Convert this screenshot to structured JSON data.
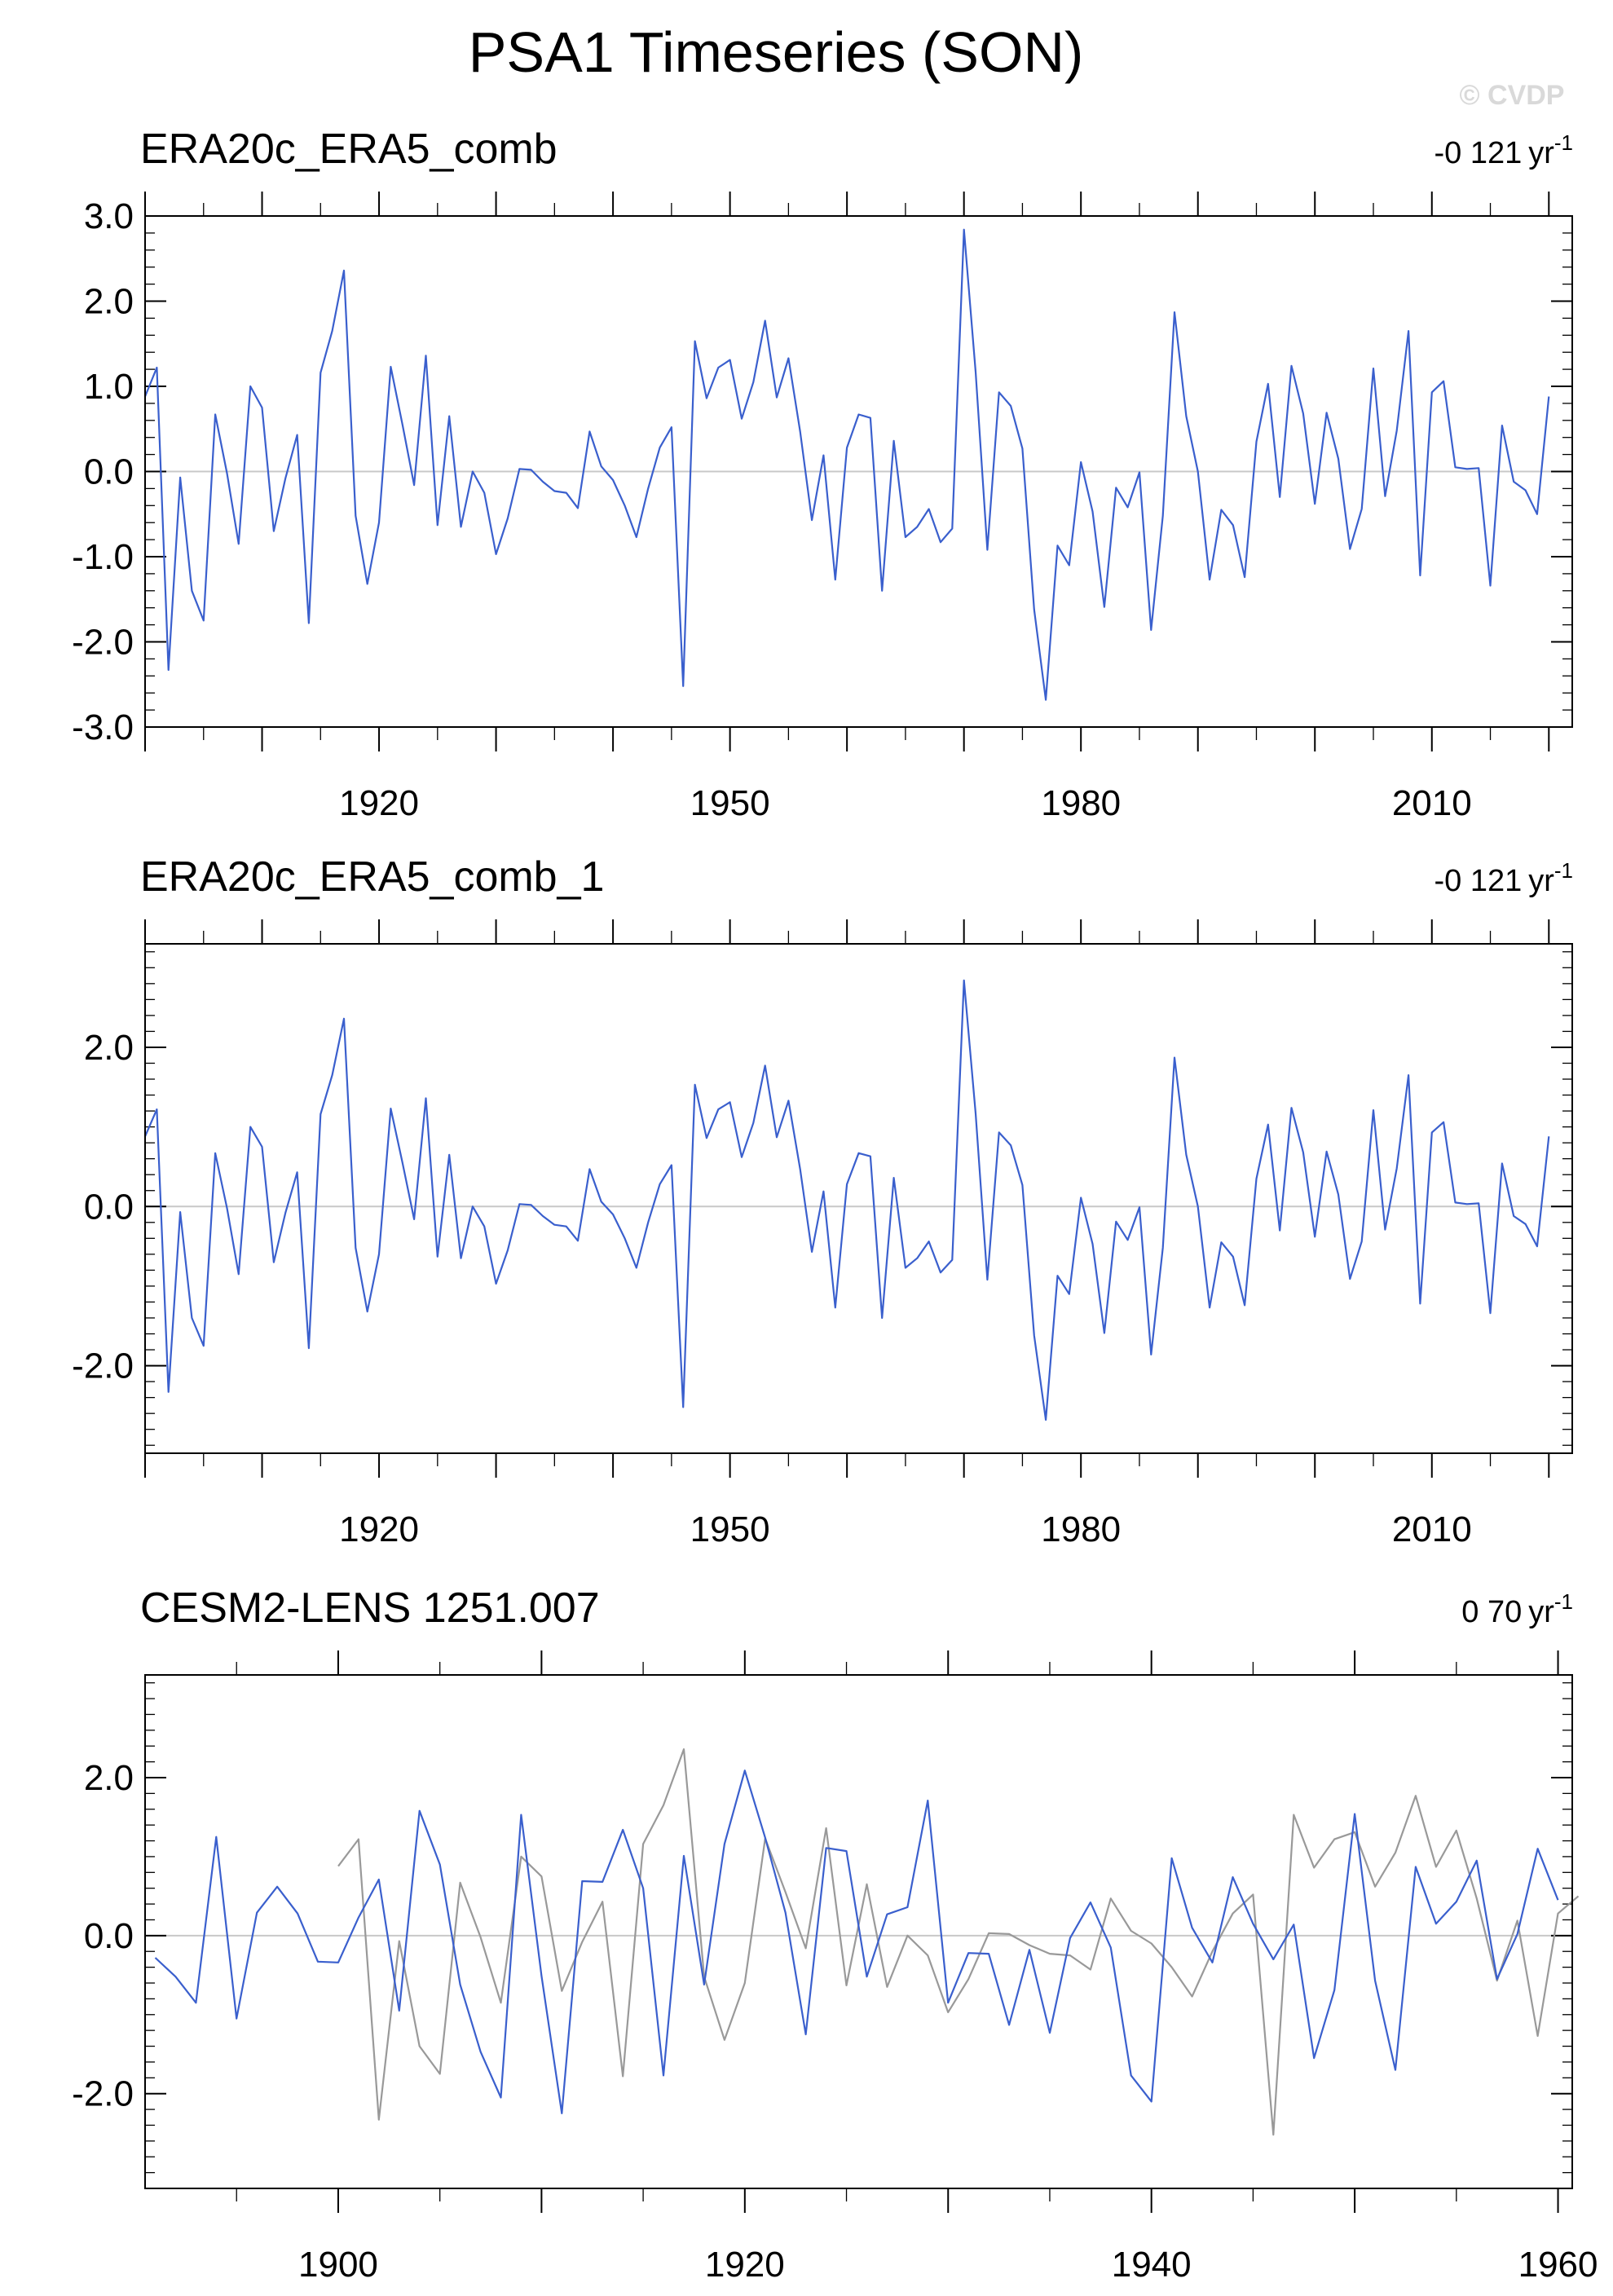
{
  "figure": {
    "title": "PSA1 Timeseries (SON)",
    "copyright": "© CVDP"
  },
  "chart_data": [
    {
      "type": "line",
      "title": "ERA20c_ERA5_comb",
      "trend_value": "-0 121",
      "trend_unit": "yr",
      "trend_exp": "-1",
      "xlim": [
        1900,
        2022
      ],
      "ylim": [
        -3.0,
        3.0
      ],
      "yticks": [
        -3.0,
        -2.0,
        -1.0,
        0.0,
        1.0,
        2.0,
        3.0
      ],
      "ytick_labels": [
        "-3.0",
        "-2.0",
        "-1.0",
        "0.0",
        "1.0",
        "2.0",
        "3.0"
      ],
      "xticks": [
        1920,
        1950,
        1980,
        2010
      ],
      "zero_line": true,
      "series": [
        {
          "color": "#3a5fcd",
          "x_start": 1900,
          "values": [
            0.88,
            1.22,
            -2.33,
            -0.07,
            -1.4,
            -1.75,
            0.67,
            -0.02,
            -0.85,
            1.0,
            0.75,
            -0.7,
            -0.08,
            0.43,
            -1.78,
            1.16,
            1.65,
            2.36,
            -0.52,
            -1.32,
            -0.6,
            1.23,
            0.55,
            -0.16,
            1.36,
            -0.63,
            0.65,
            -0.65,
            0.0,
            -0.25,
            -0.97,
            -0.55,
            0.03,
            0.02,
            -0.12,
            -0.23,
            -0.25,
            -0.43,
            0.47,
            0.06,
            -0.1,
            -0.4,
            -0.77,
            -0.2,
            0.28,
            0.52,
            -2.52,
            1.53,
            0.86,
            1.22,
            1.31,
            0.62,
            1.05,
            1.77,
            0.87,
            1.33,
            0.47,
            -0.57,
            0.19,
            -1.27,
            0.28,
            0.67,
            0.63,
            -1.4,
            0.36,
            -0.77,
            -0.65,
            -0.44,
            -0.83,
            -0.67,
            2.84,
            1.17,
            -0.92,
            0.93,
            0.77,
            0.27,
            -1.62,
            -2.68,
            -0.87,
            -1.1,
            0.11,
            -0.47,
            -1.59,
            -0.19,
            -0.42,
            -0.01,
            -1.86,
            -0.52,
            1.87,
            0.65,
            0.0,
            -1.27,
            -0.45,
            -0.63,
            -1.24,
            0.35,
            1.03,
            -0.3,
            1.24,
            0.68,
            -0.38,
            0.69,
            0.15,
            -0.91,
            -0.44,
            1.21,
            -0.29,
            0.48,
            1.65,
            -1.22,
            0.93,
            1.06,
            0.05,
            0.03,
            0.04,
            -1.34,
            0.54,
            -0.12,
            -0.22,
            -0.5,
            0.88
          ]
        }
      ]
    },
    {
      "type": "line",
      "title": "ERA20c_ERA5_comb_1",
      "trend_value": "-0 121",
      "trend_unit": "yr",
      "trend_exp": "-1",
      "xlim": [
        1900,
        2022
      ],
      "ylim": [
        -3.1,
        3.3
      ],
      "yticks": [
        -2.0,
        0.0,
        2.0
      ],
      "ytick_labels": [
        "-2.0",
        "0.0",
        "2.0"
      ],
      "xticks": [
        1920,
        1950,
        1980,
        2010
      ],
      "zero_line": true,
      "series": [
        {
          "color": "#3a5fcd",
          "x_start": 1900,
          "values": [
            0.88,
            1.22,
            -2.33,
            -0.07,
            -1.4,
            -1.75,
            0.67,
            -0.02,
            -0.85,
            1.0,
            0.75,
            -0.7,
            -0.08,
            0.43,
            -1.78,
            1.16,
            1.65,
            2.36,
            -0.52,
            -1.32,
            -0.6,
            1.23,
            0.55,
            -0.16,
            1.36,
            -0.63,
            0.65,
            -0.65,
            0.0,
            -0.25,
            -0.97,
            -0.55,
            0.03,
            0.02,
            -0.12,
            -0.23,
            -0.25,
            -0.43,
            0.47,
            0.06,
            -0.1,
            -0.4,
            -0.77,
            -0.2,
            0.28,
            0.52,
            -2.52,
            1.53,
            0.86,
            1.22,
            1.31,
            0.62,
            1.05,
            1.77,
            0.87,
            1.33,
            0.47,
            -0.57,
            0.19,
            -1.27,
            0.28,
            0.67,
            0.63,
            -1.4,
            0.36,
            -0.77,
            -0.65,
            -0.44,
            -0.83,
            -0.67,
            2.84,
            1.17,
            -0.92,
            0.93,
            0.77,
            0.27,
            -1.62,
            -2.68,
            -0.87,
            -1.1,
            0.11,
            -0.47,
            -1.59,
            -0.19,
            -0.42,
            -0.01,
            -1.86,
            -0.52,
            1.87,
            0.65,
            0.0,
            -1.27,
            -0.45,
            -0.63,
            -1.24,
            0.35,
            1.03,
            -0.3,
            1.24,
            0.68,
            -0.38,
            0.69,
            0.15,
            -0.91,
            -0.44,
            1.21,
            -0.29,
            0.48,
            1.65,
            -1.22,
            0.93,
            1.06,
            0.05,
            0.03,
            0.04,
            -1.34,
            0.54,
            -0.12,
            -0.22,
            -0.5,
            0.88
          ]
        }
      ]
    },
    {
      "type": "line",
      "title": "CESM2-LENS 1251.007",
      "trend_value": "0 70",
      "trend_unit": "yr",
      "trend_exp": "-1",
      "xlim": [
        1890.5,
        1960.7
      ],
      "ylim": [
        -3.2,
        3.3
      ],
      "yticks": [
        -2.0,
        0.0,
        2.0
      ],
      "ytick_labels": [
        "-2.0",
        "0.0",
        "2.0"
      ],
      "xticks": [
        1900,
        1920,
        1940,
        1960
      ],
      "zero_line": true,
      "series": [
        {
          "color": "#999999",
          "x_start": 1900,
          "values": [
            0.88,
            1.22,
            -2.33,
            -0.07,
            -1.4,
            -1.75,
            0.67,
            -0.02,
            -0.85,
            1.0,
            0.75,
            -0.7,
            -0.08,
            0.43,
            -1.78,
            1.16,
            1.65,
            2.36,
            -0.52,
            -1.32,
            -0.6,
            1.23,
            0.55,
            -0.16,
            1.36,
            -0.63,
            0.65,
            -0.65,
            0.0,
            -0.25,
            -0.97,
            -0.55,
            0.03,
            0.02,
            -0.12,
            -0.23,
            -0.25,
            -0.43,
            0.47,
            0.06,
            -0.1,
            -0.4,
            -0.77,
            -0.2,
            0.28,
            0.52,
            -2.52,
            1.53,
            0.86,
            1.22,
            1.31,
            0.62,
            1.05,
            1.77,
            0.87,
            1.33,
            0.47,
            -0.57,
            0.19,
            -1.27,
            0.28,
            0.5
          ]
        },
        {
          "color": "#3a5fcd",
          "x_start": 1891,
          "values": [
            -0.28,
            -0.52,
            -0.85,
            1.25,
            -1.05,
            0.29,
            0.62,
            0.28,
            -0.33,
            -0.34,
            0.23,
            0.71,
            -0.95,
            1.58,
            0.9,
            -0.62,
            -1.47,
            -2.05,
            1.53,
            -0.51,
            -2.25,
            0.69,
            0.68,
            1.34,
            0.6,
            -1.77,
            1.01,
            -0.62,
            1.16,
            2.09,
            1.24,
            0.29,
            -1.25,
            1.11,
            1.07,
            -0.52,
            0.27,
            0.36,
            1.71,
            -0.85,
            -0.22,
            -0.23,
            -1.13,
            -0.18,
            -1.23,
            -0.03,
            0.42,
            -0.15,
            -1.77,
            -2.1,
            0.98,
            0.1,
            -0.34,
            0.74,
            0.15,
            -0.3,
            0.14,
            -1.55,
            -0.69,
            1.54,
            -0.57,
            -1.7,
            0.87,
            0.15,
            0.43,
            0.95,
            -0.55,
            0.02,
            1.1,
            0.45
          ]
        }
      ]
    }
  ]
}
